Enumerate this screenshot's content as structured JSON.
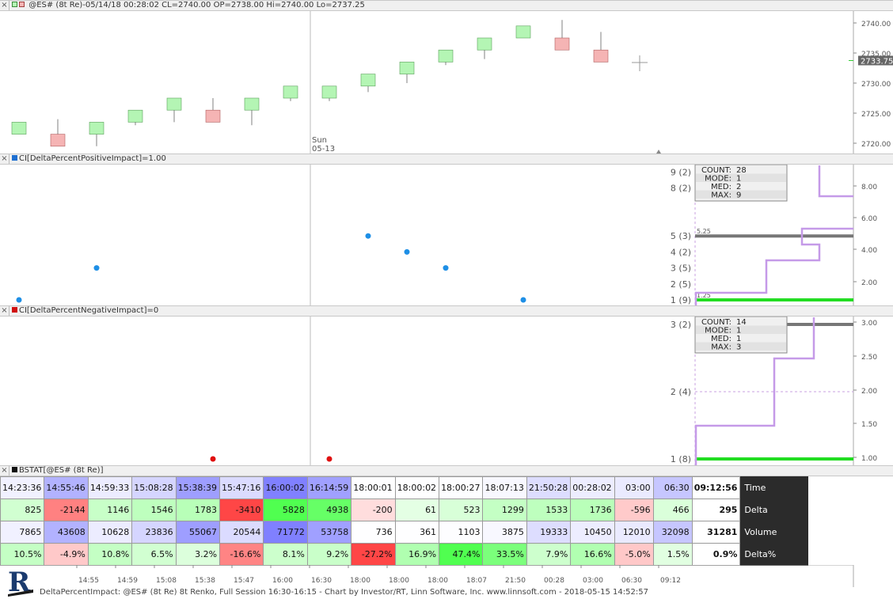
{
  "price_pane": {
    "header": "@ES# (8t Re)-05/14/18 00:28:02 CL=2740.00 OP=2738.00 Hi=2740.00 Lo=2737.25",
    "session_label_day": "Sun",
    "session_label_date": "05-13",
    "last_price": "2733.75",
    "y_ticks": [
      "2740.00",
      "2735.00",
      "2730.00",
      "2725.00",
      "2720.00"
    ],
    "colors": {
      "up": "#b4f5b4",
      "down": "#f5b4b4",
      "wick": "#808080"
    }
  },
  "pos_pane": {
    "header": "CI[DeltaPercentPositiveImpact]=1.00",
    "swatch_color": "#1e6fd0",
    "dot_color": "#1e8fe6",
    "stats": [
      [
        "COUNT:",
        "28"
      ],
      [
        "MODE:",
        "1"
      ],
      [
        "MED:",
        "2"
      ],
      [
        "MAX:",
        "9"
      ]
    ],
    "hist_labels": [
      "9 (2)",
      "8 (2)",
      "5 (3)",
      "4 (2)",
      "3 (5)",
      "2 (5)",
      "1 (9)"
    ],
    "median_label": "5.25",
    "mode_label": "1.25",
    "y_ticks": [
      "8.00",
      "6.00",
      "4.00",
      "2.00"
    ]
  },
  "neg_pane": {
    "header": "CI[DeltaPercentNegativeImpact]=0",
    "swatch_color": "#d01010",
    "dot_color": "#e01010",
    "stats": [
      [
        "COUNT:",
        "14"
      ],
      [
        "MODE:",
        "1"
      ],
      [
        "MED:",
        "1"
      ],
      [
        "MAX:",
        "3"
      ]
    ],
    "hist_labels": [
      "3 (2)",
      "2 (4)",
      "1 (8)"
    ],
    "y_ticks": [
      "3.00",
      "2.50",
      "2.00",
      "1.50",
      "1.00"
    ]
  },
  "bstat": {
    "header": "BSTAT[@ES# (8t Re)]",
    "columns": [
      "14:23:36",
      "14:55:46",
      "14:59:33",
      "15:08:28",
      "15:38:39",
      "15:47:16",
      "16:00:02",
      "16:14:59",
      "18:00:01",
      "18:00:02",
      "18:00:27",
      "18:07:13",
      "21:50:28",
      "00:28:02",
      "03:00",
      "06:30",
      "09:12:56"
    ],
    "rows": [
      {
        "label": "Delta",
        "values": [
          "825",
          "-2144",
          "1146",
          "1546",
          "1783",
          "-3410",
          "5828",
          "4938",
          "-200",
          "61",
          "523",
          "1299",
          "1533",
          "1736",
          "-596",
          "466",
          "295"
        ]
      },
      {
        "label": "Volume",
        "values": [
          "7865",
          "43608",
          "10628",
          "23836",
          "55067",
          "20544",
          "71772",
          "53758",
          "736",
          "361",
          "1103",
          "3875",
          "19333",
          "10450",
          "12010",
          "32098",
          "31281"
        ]
      },
      {
        "label": "Delta%",
        "values": [
          "10.5%",
          "-4.9%",
          "10.8%",
          "6.5%",
          "3.2%",
          "-16.6%",
          "8.1%",
          "9.2%",
          "-27.2%",
          "16.9%",
          "47.4%",
          "33.5%",
          "7.9%",
          "16.6%",
          "-5.0%",
          "1.5%",
          "0.9%"
        ]
      }
    ],
    "time_row_label": "Time"
  },
  "time_axis": [
    "14:55",
    "14:59",
    "15:08",
    "15:38",
    "15:47",
    "16:00",
    "16:30",
    "18:00",
    "18:00",
    "18:00",
    "18:07",
    "21:50",
    "00:28",
    "03:00",
    "06:30",
    "09:12"
  ],
  "footer": "DeltaPercentImpact: @ES# (8t Re) 8t Renko, Full Session 16:30-16:15 - Chart by Investor/RT, Linn Software, Inc. www.linnsoft.com - 2018-05-15 14:52:57",
  "logo_letter": "R"
}
